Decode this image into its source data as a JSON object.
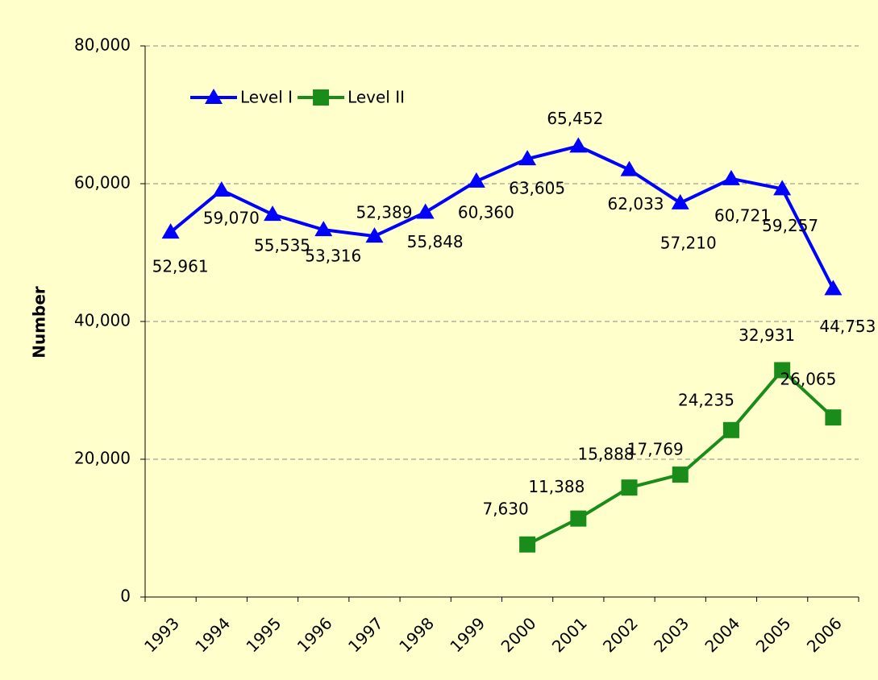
{
  "chart_data": {
    "type": "line",
    "y_label": "Number",
    "categories": [
      "1993",
      "1994",
      "1995",
      "1996",
      "1997",
      "1998",
      "1999",
      "2000",
      "2001",
      "2002",
      "2003",
      "2004",
      "2005",
      "2006"
    ],
    "series": [
      {
        "name": "Level I",
        "color": "#0000ff",
        "marker": "triangle",
        "values": [
          52961,
          59070,
          55535,
          53316,
          52389,
          55848,
          60360,
          63605,
          65452,
          62033,
          57210,
          60721,
          59257,
          44753
        ],
        "value_labels": [
          "52,961",
          "59,070",
          "55,535",
          "53,316",
          "52,389",
          "55,848",
          "60,360",
          "63,605",
          "65,452",
          "62,033",
          "57,210",
          "60,721",
          "59,257",
          "44,753"
        ]
      },
      {
        "name": "Level II",
        "color": "#1a8c1a",
        "marker": "square",
        "values": [
          null,
          null,
          null,
          null,
          null,
          null,
          null,
          7630,
          11388,
          15888,
          17769,
          24235,
          32931,
          26065
        ],
        "value_labels": [
          null,
          null,
          null,
          null,
          null,
          null,
          null,
          "7,630",
          "11,388",
          "15,888",
          "17,769",
          "24,235",
          "32,931",
          "26,065"
        ]
      }
    ],
    "ylim": [
      0,
      80000
    ],
    "yticks": [
      0,
      {
        "value": 20000,
        "label": "20,000"
      },
      {
        "value": 40000,
        "label": "40,000"
      },
      {
        "value": 60000,
        "label": "60,000"
      },
      {
        "value": 80000,
        "label": "80,000"
      }
    ],
    "grid": true,
    "legend": "upper left"
  }
}
